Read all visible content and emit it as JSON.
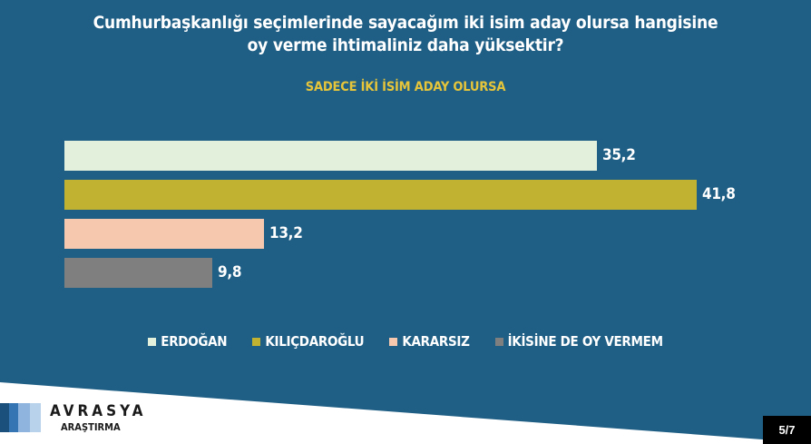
{
  "slide": {
    "title_line1": "Cumhurbaşkanlığı seçimlerinde sayacağım iki isim aday olursa hangisine",
    "title_line2": "oy verme ihtimaliniz daha yüksektir?",
    "subtitle": "SADECE İKİ İSİM ADAY OLURSA",
    "background_color": "#1f5f85",
    "subtitle_color": "#e6c53a"
  },
  "chart_data": {
    "type": "bar",
    "orientation": "horizontal",
    "title": "Cumhurbaşkanlığı seçimlerinde sayacağım iki isim aday olursa hangisine oy verme ihtimaliniz daha yüksektir?",
    "subtitle": "SADECE İKİ İSİM ADAY OLURSA",
    "categories": [
      "ERDOĞAN",
      "KILIÇDAROĞLU",
      "KARARSIZ",
      "İKİSİNE DE OY VERMEM"
    ],
    "values": [
      35.2,
      41.8,
      13.2,
      9.8
    ],
    "value_labels": [
      "35,2",
      "41,8",
      "13,2",
      "9,8"
    ],
    "colors": [
      "#e3f0dc",
      "#c2b231",
      "#f6c8ae",
      "#7f7f7f"
    ],
    "xlabel": "",
    "ylabel": "",
    "grid": false,
    "legend_position": "bottom"
  },
  "legend": {
    "items": [
      {
        "label": "ERDOĞAN",
        "color": "#e3f0dc"
      },
      {
        "label": "KILIÇDAROĞLU",
        "color": "#c2b231"
      },
      {
        "label": "KARARSIZ",
        "color": "#f6c8ae"
      },
      {
        "label": "İKİSİNE DE OY VERMEM",
        "color": "#7f7f7f"
      }
    ]
  },
  "branding": {
    "name": "AVRASYA",
    "sub": "ARAŞTIRMA",
    "stripe_colors": [
      "#1b4f7c",
      "#3675b4",
      "#8fb4dd",
      "#b9d2ec"
    ]
  },
  "pagination": {
    "label": "5/7"
  }
}
